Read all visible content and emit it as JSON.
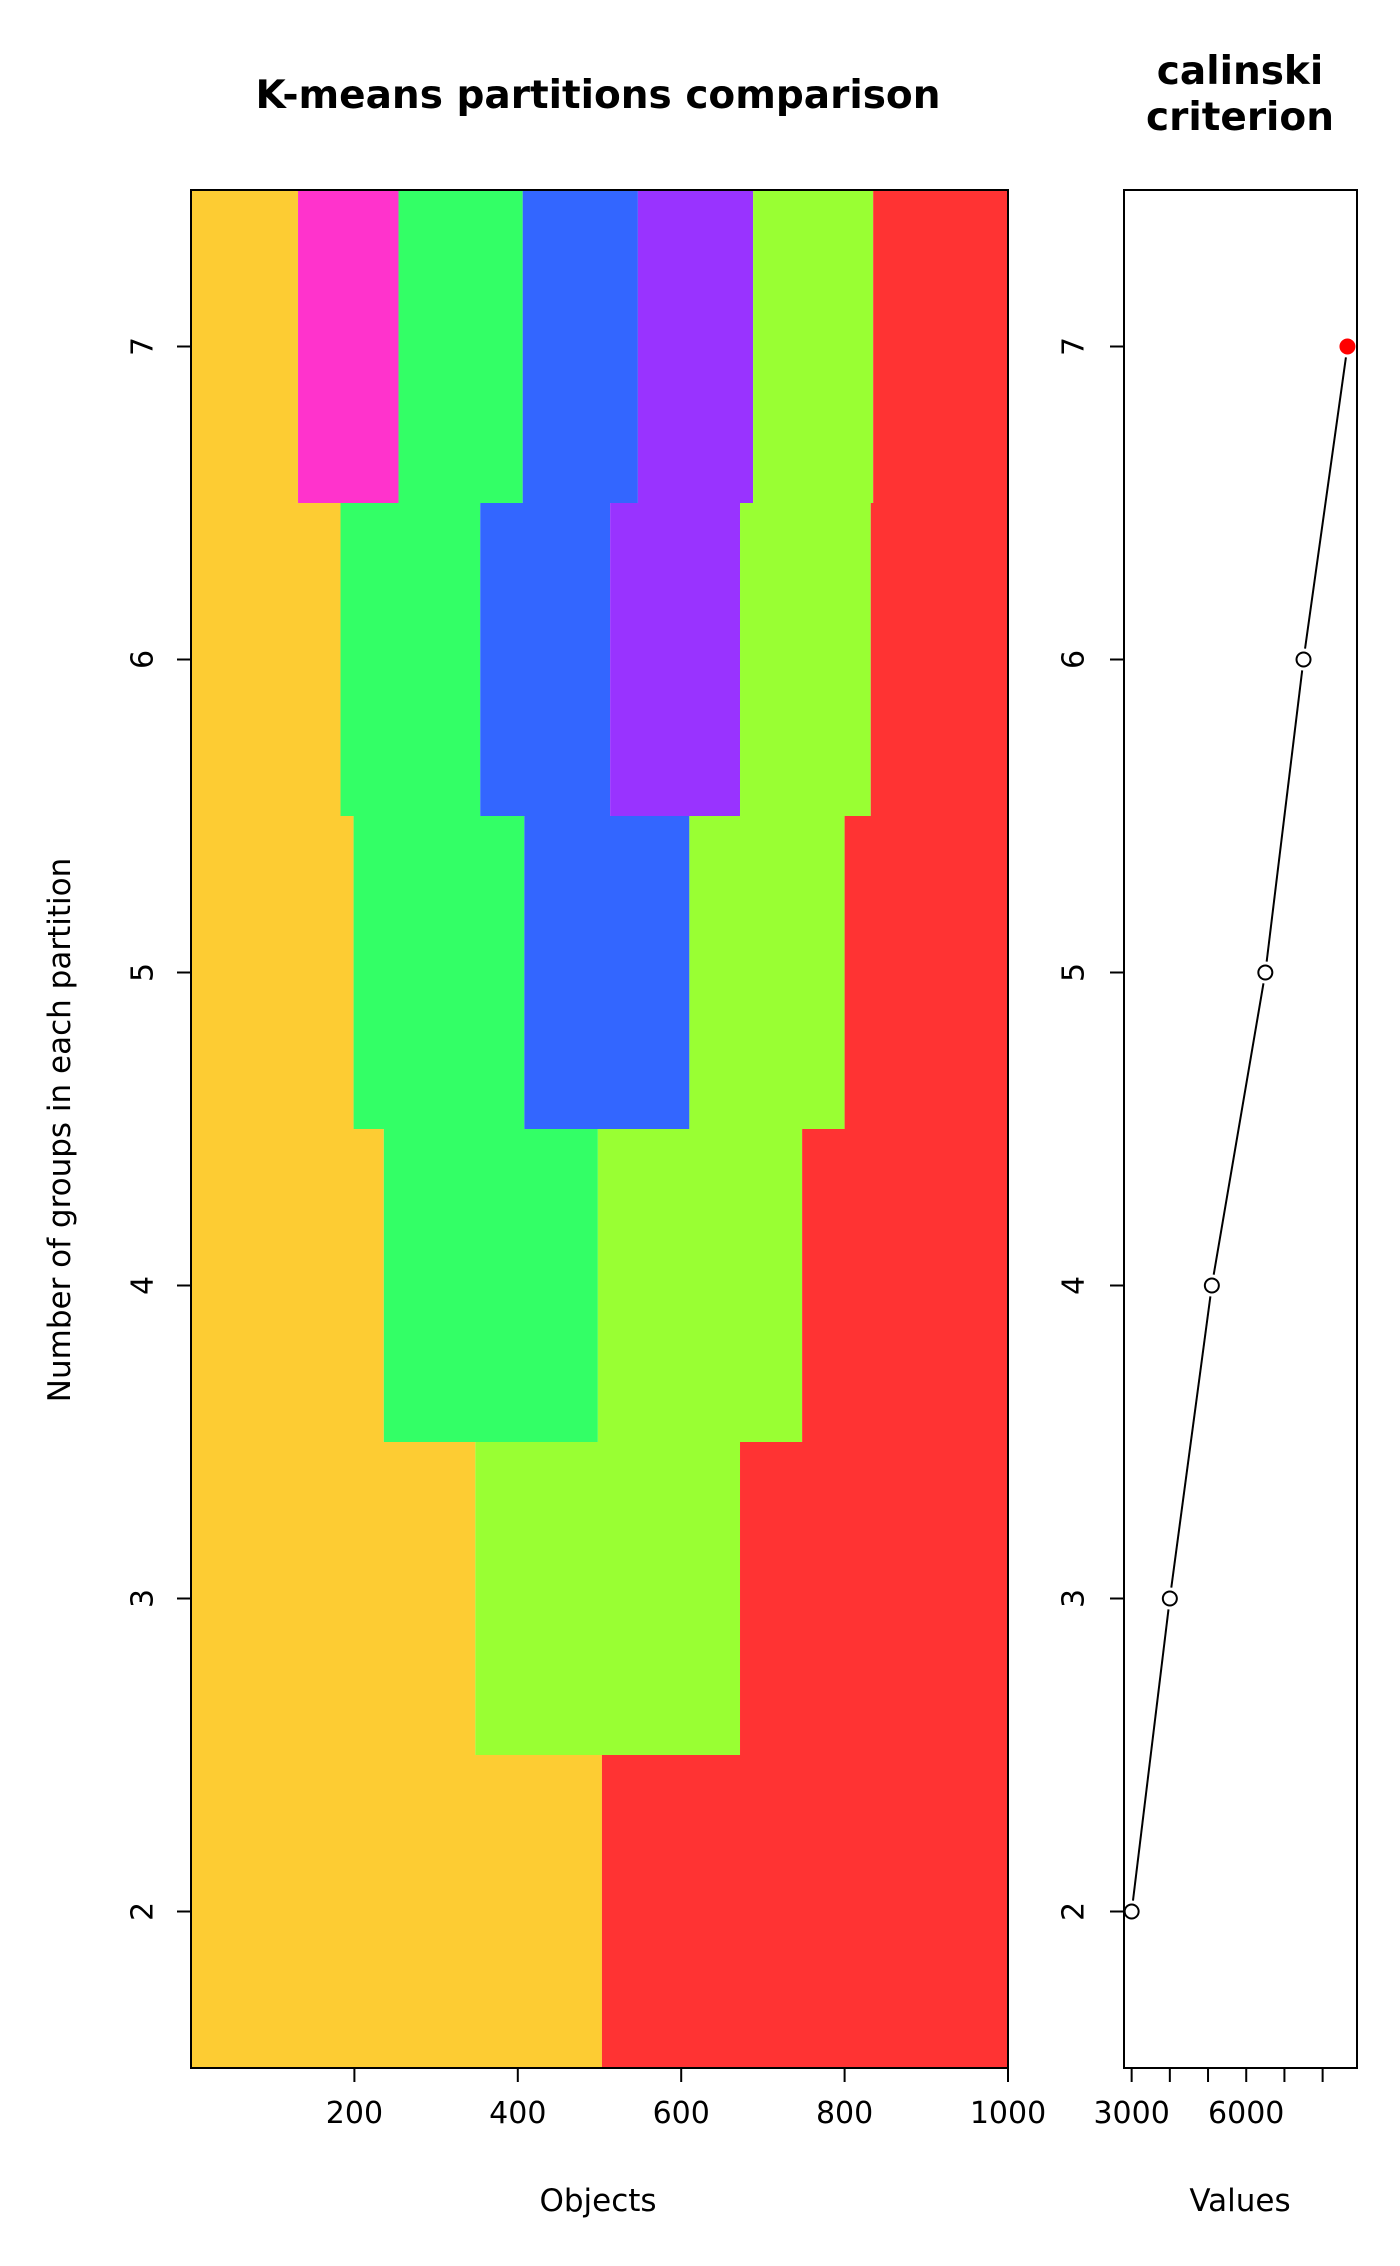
{
  "chart_data": [
    {
      "type": "heatmap",
      "title": "K-means partitions comparison",
      "xlabel": "Objects",
      "ylabel": "Number of groups in each partition",
      "xlim": [
        0,
        1000
      ],
      "x_ticks": [
        "200",
        "400",
        "600",
        "800",
        "1000"
      ],
      "y_ticks": [
        "2",
        "3",
        "4",
        "5",
        "6",
        "7"
      ],
      "colors": {
        "orange": "#FDCC33",
        "magenta": "#FF33CC",
        "green": "#33FF66",
        "blue": "#3366FF",
        "purple": "#9933FF",
        "lime": "#99FF33",
        "red": "#FF3333"
      },
      "rows": [
        {
          "k": 2,
          "segments": [
            {
              "end": 503,
              "color": "orange"
            },
            {
              "end": 1000,
              "color": "red"
            }
          ]
        },
        {
          "k": 3,
          "segments": [
            {
              "end": 348,
              "color": "orange"
            },
            {
              "end": 672,
              "color": "lime"
            },
            {
              "end": 1000,
              "color": "red"
            }
          ]
        },
        {
          "k": 4,
          "segments": [
            {
              "end": 236,
              "color": "orange"
            },
            {
              "end": 498,
              "color": "green"
            },
            {
              "end": 748,
              "color": "lime"
            },
            {
              "end": 1000,
              "color": "red"
            }
          ]
        },
        {
          "k": 5,
          "segments": [
            {
              "end": 199,
              "color": "orange"
            },
            {
              "end": 408,
              "color": "green"
            },
            {
              "end": 610,
              "color": "blue"
            },
            {
              "end": 800,
              "color": "lime"
            },
            {
              "end": 1000,
              "color": "red"
            }
          ]
        },
        {
          "k": 6,
          "segments": [
            {
              "end": 183,
              "color": "orange"
            },
            {
              "end": 354,
              "color": "green"
            },
            {
              "end": 513,
              "color": "blue"
            },
            {
              "end": 672,
              "color": "purple"
            },
            {
              "end": 832,
              "color": "lime"
            },
            {
              "end": 1000,
              "color": "red"
            }
          ]
        },
        {
          "k": 7,
          "segments": [
            {
              "end": 131,
              "color": "orange"
            },
            {
              "end": 254,
              "color": "magenta"
            },
            {
              "end": 406,
              "color": "green"
            },
            {
              "end": 547,
              "color": "blue"
            },
            {
              "end": 688,
              "color": "purple"
            },
            {
              "end": 835,
              "color": "lime"
            },
            {
              "end": 1000,
              "color": "red"
            }
          ]
        }
      ]
    },
    {
      "type": "line",
      "title": "calinski\ncriterion",
      "title_lines": [
        "calinski",
        "criterion"
      ],
      "xlabel": "Values",
      "ylabel": "",
      "x_ticks": [
        "3000",
        "6000"
      ],
      "x_minor_ticks": [
        3000,
        4000,
        5000,
        6000,
        7000,
        8000
      ],
      "xlim": [
        2800,
        8900
      ],
      "series": [
        {
          "x": [
            3000,
            4000,
            5100,
            6500,
            7500,
            8650
          ],
          "y": [
            2,
            3,
            4,
            5,
            6,
            7
          ]
        }
      ],
      "highlight": {
        "k": 7,
        "color": "#FF0000"
      }
    }
  ]
}
